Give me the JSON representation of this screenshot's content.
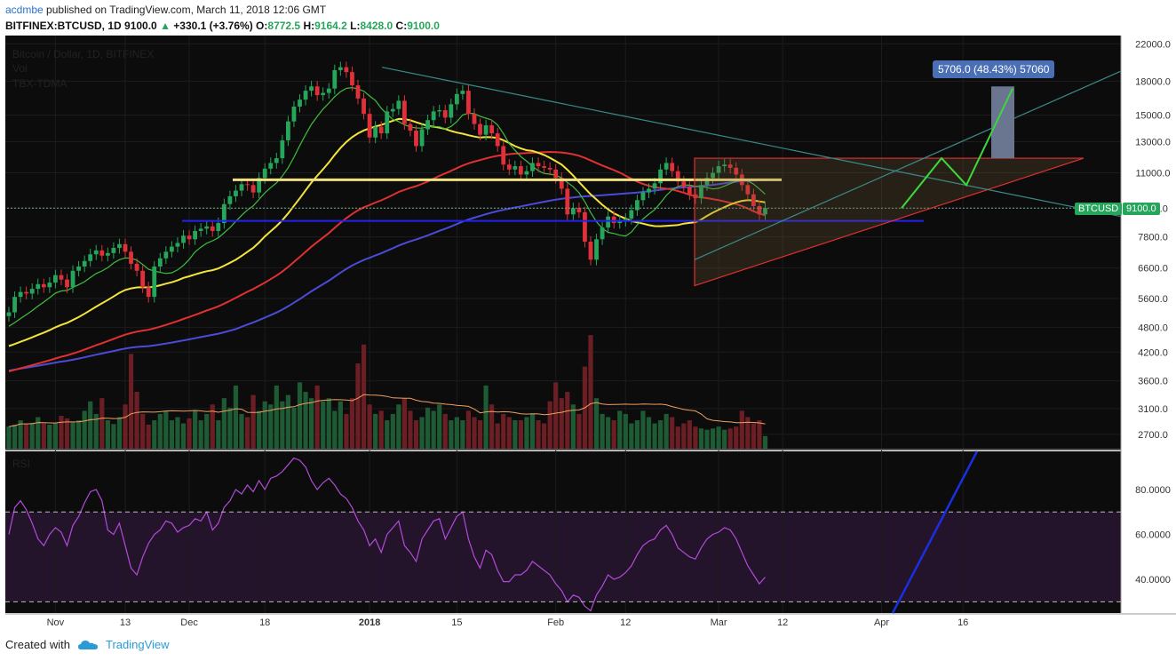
{
  "header": {
    "author": "acdmbe",
    "published": "published on TradingView.com, March 11, 2018 12:06 GMT",
    "symbol": "BITFINEX:BTCUSD, 1D",
    "price": "9100.0",
    "change": "+330.1 (+3.76%)",
    "ohlc_o_label": "O:",
    "ohlc_o": "8772.5",
    "ohlc_h_label": "H:",
    "ohlc_h": "9164.2",
    "ohlc_l_label": "L:",
    "ohlc_l": "8428.0",
    "ohlc_c_label": "C:",
    "ohlc_c": "9100.0"
  },
  "legend": {
    "title": "Bitcoin / Dollar, 1D, BITFINEX",
    "vol": "Vol",
    "indicator": "TBX-TDMA",
    "rsi": "RSI"
  },
  "price_tag": {
    "symbol": "BTCUSD",
    "value": "9100.0"
  },
  "measure_label": "5706.0 (48.43%) 57060",
  "footer": {
    "created_with": "Created with",
    "brand": "TradingView"
  },
  "colors": {
    "up": "#26a65b",
    "down": "#e0303a",
    "ma_yellow": "#f5e43a",
    "ma_red": "#e03030",
    "ma_blue": "#4b4bd8",
    "ma_green": "#3fbf3f",
    "rsi_line": "#b24bd8",
    "rsi_bg": "#24142b",
    "panel_bg": "#0c0c0c",
    "grid": "#1c1c1c",
    "axis_text": "#ccc"
  },
  "chart_data": {
    "type": "candlestick",
    "title": "Bitcoin / Dollar, 1D, BITFINEX",
    "y_axis_ticks": [
      "22000.0",
      "18000.0",
      "15000.0",
      "13000.0",
      "11000.0",
      "9100.0",
      "7800.0",
      "6600.0",
      "5600.0",
      "4800.0",
      "4200.0",
      "3600.0",
      "3100.0",
      "2700.0"
    ],
    "y_tick_values": [
      22000,
      18000,
      15000,
      13000,
      11000,
      9100,
      7800,
      6600,
      5600,
      4800,
      4200,
      3600,
      3100,
      2700
    ],
    "y_scale": "log",
    "y_range": [
      2500,
      23000
    ],
    "x_axis_ticks": [
      "Nov",
      "13",
      "Dec",
      "18",
      "2018",
      "15",
      "Feb",
      "12",
      "Mar",
      "12",
      "Apr",
      "16"
    ],
    "x_tick_days": [
      8,
      20,
      31,
      44,
      62,
      77,
      94,
      106,
      122,
      133,
      150,
      164
    ],
    "rsi_ticks": [
      "80.0000",
      "60.0000",
      "40.0000"
    ],
    "rsi_tick_values": [
      80,
      60,
      40
    ],
    "rsi_range": [
      25,
      97
    ],
    "rsi_bands": [
      70,
      30
    ],
    "closes": [
      5200,
      5650,
      5800,
      5750,
      5900,
      6050,
      5950,
      6100,
      6350,
      6200,
      5950,
      6500,
      6650,
      6850,
      7100,
      7250,
      7050,
      7150,
      7350,
      7500,
      7200,
      6750,
      6500,
      5950,
      5650,
      6650,
      6950,
      7200,
      7400,
      7550,
      7850,
      7700,
      8050,
      8150,
      8250,
      8050,
      8400,
      9300,
      9700,
      10000,
      10350,
      10300,
      9900,
      10700,
      11250,
      11600,
      11900,
      13100,
      14500,
      15700,
      16300,
      17100,
      17500,
      16700,
      16900,
      17300,
      19100,
      19400,
      18900,
      17600,
      16400,
      15100,
      13300,
      14100,
      13600,
      15300,
      15500,
      16200,
      14300,
      13800,
      12700,
      13900,
      14600,
      15300,
      15400,
      14800,
      15900,
      16800,
      17100,
      15100,
      14300,
      13500,
      14200,
      13600,
      12700,
      11500,
      11200,
      11400,
      10900,
      11100,
      11600,
      11400,
      11300,
      11200,
      10700,
      10100,
      8800,
      9100,
      8900,
      7600,
      6900,
      7700,
      8200,
      8700,
      8400,
      8500,
      8600,
      9000,
      9500,
      9900,
      10100,
      10400,
      11200,
      11600,
      11100,
      10500,
      10200,
      9800,
      9600,
      10300,
      10700,
      11000,
      11400,
      11500,
      11300,
      10900,
      10300,
      9800,
      9200,
      8800,
      9100
    ],
    "volume": [
      2950,
      2980,
      3050,
      2990,
      3010,
      3100,
      3000,
      2980,
      3000,
      3120,
      3080,
      3020,
      3050,
      3200,
      3350,
      3150,
      3400,
      3050,
      2990,
      3100,
      3300,
      4100,
      3500,
      3150,
      2980,
      3050,
      3150,
      3200,
      3050,
      3100,
      3000,
      3080,
      3200,
      3050,
      3150,
      3300,
      3050,
      3400,
      3250,
      3600,
      3150,
      3100,
      3450,
      3200,
      3350,
      3300,
      3600,
      3350,
      3450,
      3250,
      3650,
      3500,
      3400,
      3600,
      3350,
      3400,
      3200,
      3350,
      3150,
      3400,
      3950,
      4250,
      3300,
      3150,
      3200,
      3050,
      3150,
      3300,
      3400,
      3200,
      3050,
      3100,
      3250,
      3200,
      3300,
      3150,
      3050,
      3100,
      3050,
      3200,
      3100,
      3050,
      3600,
      3300,
      3000,
      3150,
      3100,
      3050,
      3050,
      3100,
      3150,
      3050,
      3000,
      3350,
      3650,
      3400,
      3500,
      3300,
      3150,
      3900,
      4400,
      3400,
      3150,
      3100,
      3050,
      3200,
      3150,
      3000,
      3050,
      3200,
      3100,
      3000,
      3050,
      3150,
      3100,
      2950,
      3000,
      3050,
      2950,
      2920,
      2900,
      2920,
      2950,
      2900,
      2920,
      2950,
      3200,
      3100,
      3000,
      3050,
      2800
    ],
    "rsi": [
      60,
      72,
      75,
      71,
      65,
      58,
      55,
      60,
      63,
      61,
      55,
      64,
      68,
      74,
      79,
      80,
      75,
      62,
      60,
      65,
      55,
      45,
      42,
      50,
      56,
      60,
      62,
      66,
      65,
      61,
      63,
      64,
      67,
      66,
      70,
      62,
      65,
      72,
      75,
      80,
      78,
      82,
      79,
      84,
      80,
      85,
      86,
      88,
      91,
      94,
      93,
      90,
      84,
      80,
      83,
      85,
      82,
      78,
      76,
      72,
      66,
      62,
      55,
      58,
      52,
      60,
      63,
      66,
      55,
      52,
      48,
      58,
      62,
      66,
      67,
      58,
      63,
      68,
      70,
      58,
      50,
      45,
      53,
      51,
      44,
      39,
      39,
      42,
      42,
      44,
      48,
      46,
      44,
      42,
      38,
      35,
      30,
      33,
      32,
      28,
      26,
      33,
      37,
      42,
      40,
      41,
      43,
      46,
      51,
      55,
      57,
      58,
      62,
      64,
      60,
      54,
      52,
      50,
      49,
      54,
      58,
      60,
      61,
      63,
      62,
      58,
      52,
      46,
      42,
      38,
      41
    ]
  }
}
